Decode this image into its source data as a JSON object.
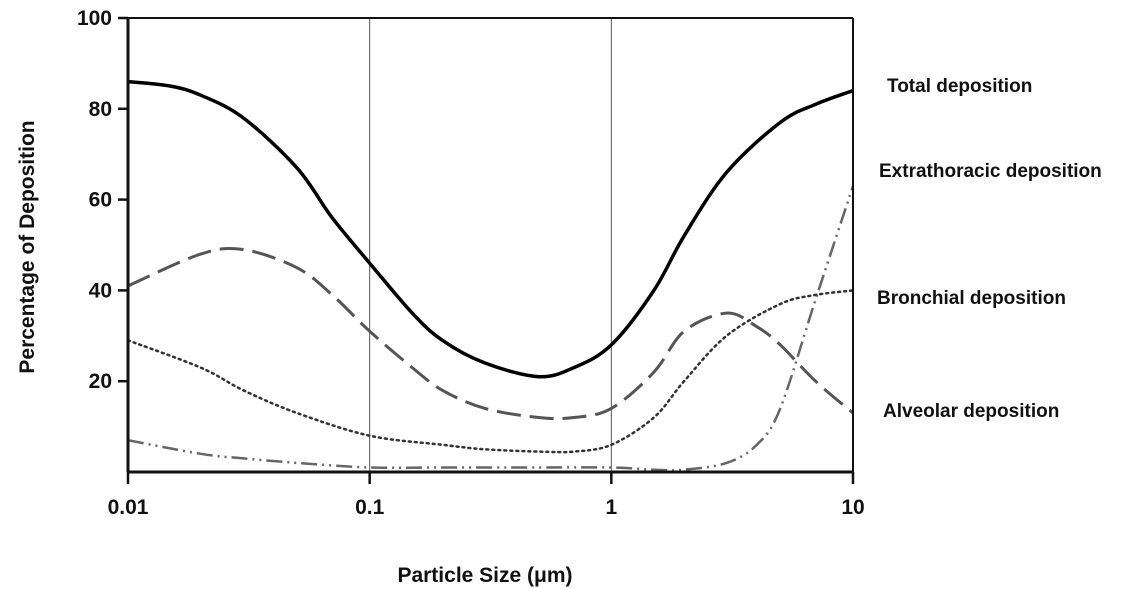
{
  "chart_data": {
    "type": "line",
    "title": "",
    "xlabel": "Particle Size (μm)",
    "ylabel": "Percentage of Deposition",
    "xscale": "log",
    "xlim": [
      0.01,
      10
    ],
    "ylim": [
      0,
      100
    ],
    "xticks": [
      {
        "value": 0.01,
        "label": "0.01"
      },
      {
        "value": 0.1,
        "label": "0.1"
      },
      {
        "value": 1,
        "label": "1"
      },
      {
        "value": 10,
        "label": "10"
      }
    ],
    "yticks": [
      {
        "value": 20,
        "label": "20"
      },
      {
        "value": 40,
        "label": "40"
      },
      {
        "value": 60,
        "label": "60"
      },
      {
        "value": 80,
        "label": "80"
      },
      {
        "value": 100,
        "label": "100"
      }
    ],
    "vertical_gridlines": [
      0.1,
      1
    ],
    "legend": "direct labels at right",
    "series": [
      {
        "name": "Total deposition",
        "style": "solid",
        "color": "#000000",
        "x": [
          0.01,
          0.015,
          0.02,
          0.03,
          0.05,
          0.07,
          0.1,
          0.15,
          0.2,
          0.3,
          0.5,
          0.7,
          1,
          1.5,
          2,
          3,
          5,
          7,
          10
        ],
        "y": [
          86,
          85,
          83,
          78,
          67,
          56,
          46,
          35,
          29,
          24,
          21,
          23,
          28,
          40,
          52,
          66,
          77,
          81,
          84
        ]
      },
      {
        "name": "Extrathoracic deposition",
        "style": "dash-dot-dot",
        "color": "#666666",
        "x": [
          0.01,
          0.02,
          0.03,
          0.05,
          0.1,
          0.2,
          0.5,
          1,
          1.5,
          2,
          3,
          4,
          5,
          7,
          10
        ],
        "y": [
          7,
          4,
          3,
          2,
          1,
          1,
          1,
          1,
          0.5,
          0.5,
          2,
          6,
          14,
          38,
          63
        ]
      },
      {
        "name": "Bronchial deposition",
        "style": "dotted",
        "color": "#333333",
        "x": [
          0.01,
          0.02,
          0.03,
          0.05,
          0.1,
          0.2,
          0.3,
          0.5,
          0.7,
          1,
          1.5,
          2,
          3,
          5,
          7,
          10
        ],
        "y": [
          29,
          23,
          18,
          13,
          8,
          6,
          5,
          4.5,
          4.5,
          6,
          12,
          20,
          30,
          37,
          39,
          40
        ]
      },
      {
        "name": "Alveolar deposition",
        "style": "dashed",
        "color": "#555555",
        "x": [
          0.01,
          0.02,
          0.03,
          0.05,
          0.07,
          0.1,
          0.15,
          0.2,
          0.3,
          0.5,
          0.7,
          1,
          1.5,
          2,
          3,
          4,
          5,
          7,
          10
        ],
        "y": [
          41,
          48,
          49,
          45,
          39,
          31,
          23,
          18,
          14,
          12,
          12,
          14,
          22,
          31,
          35,
          32,
          28,
          20,
          13
        ]
      }
    ]
  }
}
